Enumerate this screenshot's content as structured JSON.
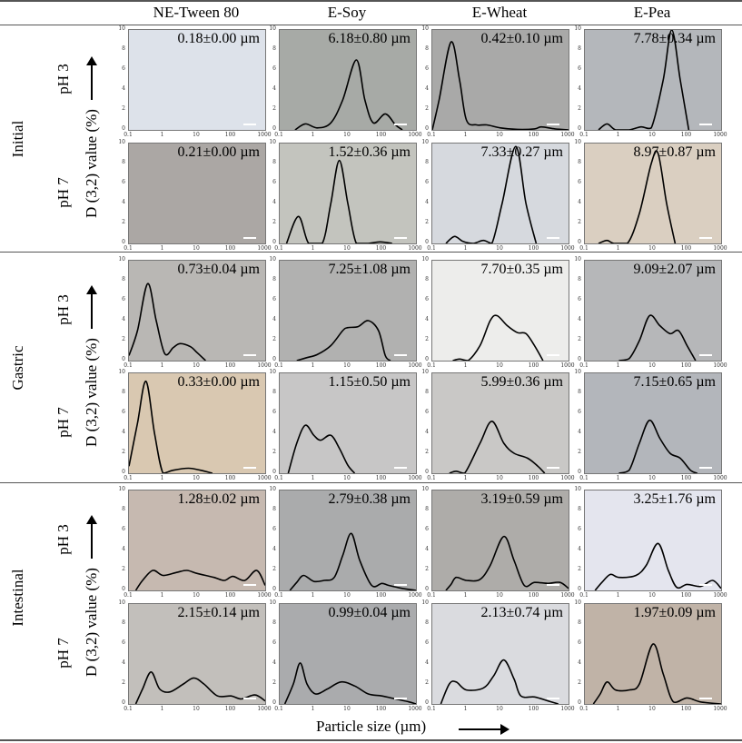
{
  "columns": [
    "NE-Tween 80",
    "E-Soy",
    "E-Wheat",
    "E-Pea"
  ],
  "stages": [
    {
      "label": "Initial",
      "rows": [
        "pH 3",
        "pH 7"
      ]
    },
    {
      "label": "Gastric",
      "rows": [
        "pH 3",
        "pH 7"
      ]
    },
    {
      "label": "Intestinal",
      "rows": [
        "pH 3",
        "pH 7"
      ]
    }
  ],
  "y_axis_label": "D (3,2) value (%)",
  "x_axis_label": "Particle size (µm)",
  "colors": {
    "line": "#000000",
    "rule": "#555555"
  },
  "chart_data": {
    "type": "line",
    "x_scale": "log",
    "xlim": [
      0.1,
      1000
    ],
    "ylim": [
      0,
      10
    ],
    "x_ticks": [
      "0.1",
      "1",
      "10",
      "100",
      "1000"
    ],
    "y_ticks": [
      "0",
      "2",
      "4",
      "6",
      "8",
      "10"
    ],
    "xlabel": "Particle size (µm)",
    "ylabel": "D (3,2) value (%)",
    "point_format": "[log10(particle size µm), value %]",
    "panels": [
      {
        "stage": "Initial",
        "ph": "pH 3",
        "sample": "NE-Tween 80",
        "label": "0.18±0.00 µm",
        "bg": "#dde2ea",
        "points": []
      },
      {
        "stage": "Initial",
        "ph": "pH 3",
        "sample": "E-Soy",
        "label": "6.18±0.80 µm",
        "bg": "#a7aaa6",
        "points": [
          [
            -0.55,
            0
          ],
          [
            -0.25,
            0.6
          ],
          [
            0.1,
            0.2
          ],
          [
            0.5,
            0.7
          ],
          [
            0.85,
            3
          ],
          [
            1.25,
            7
          ],
          [
            1.5,
            3
          ],
          [
            1.75,
            0.7
          ],
          [
            2.1,
            1.6
          ],
          [
            2.4,
            0.5
          ],
          [
            2.6,
            0
          ]
        ]
      },
      {
        "stage": "Initial",
        "ph": "pH 3",
        "sample": "E-Wheat",
        "label": "0.42±0.10 µm",
        "bg": "#a9a9a8",
        "points": [
          [
            -1,
            0
          ],
          [
            -0.8,
            3
          ],
          [
            -0.45,
            8.8
          ],
          [
            -0.2,
            5
          ],
          [
            0,
            1
          ],
          [
            0.3,
            0.5
          ],
          [
            0.6,
            0.5
          ],
          [
            1,
            0.2
          ],
          [
            1.5,
            0.05
          ],
          [
            2,
            0.1
          ],
          [
            2.2,
            0.3
          ],
          [
            2.6,
            0.1
          ],
          [
            3,
            0
          ]
        ]
      },
      {
        "stage": "Initial",
        "ph": "pH 3",
        "sample": "E-Pea",
        "label": "7.78±0.34 µm",
        "bg": "#b4b7bb",
        "points": [
          [
            -0.6,
            0
          ],
          [
            -0.35,
            0.6
          ],
          [
            -0.1,
            0
          ],
          [
            0.3,
            0
          ],
          [
            0.65,
            0.3
          ],
          [
            0.95,
            0.2
          ],
          [
            1.3,
            5
          ],
          [
            1.55,
            10
          ],
          [
            1.8,
            5
          ],
          [
            2.05,
            0
          ]
        ]
      },
      {
        "stage": "Initial",
        "ph": "pH 7",
        "sample": "NE-Tween 80",
        "label": "0.21±0.00 µm",
        "bg": "#aba7a4",
        "points": []
      },
      {
        "stage": "Initial",
        "ph": "pH 7",
        "sample": "E-Soy",
        "label": "1.52±0.36 µm",
        "bg": "#c3c4be",
        "points": [
          [
            -0.8,
            0
          ],
          [
            -0.45,
            2.7
          ],
          [
            -0.15,
            0
          ],
          [
            0.25,
            0
          ],
          [
            0.5,
            4
          ],
          [
            0.75,
            8.3
          ],
          [
            1,
            4
          ],
          [
            1.25,
            0
          ],
          [
            1.6,
            0
          ],
          [
            1.95,
            0.15
          ],
          [
            2.3,
            0
          ]
        ]
      },
      {
        "stage": "Initial",
        "ph": "pH 7",
        "sample": "E-Wheat",
        "label": "7.33±0.27 µm",
        "bg": "#d6d9de",
        "points": [
          [
            -0.6,
            0
          ],
          [
            -0.35,
            0.7
          ],
          [
            -0.1,
            0.2
          ],
          [
            0.2,
            0
          ],
          [
            0.5,
            0.3
          ],
          [
            0.75,
            0
          ],
          [
            1.05,
            4
          ],
          [
            1.45,
            9.7
          ],
          [
            1.75,
            4
          ],
          [
            2.05,
            0
          ]
        ]
      },
      {
        "stage": "Initial",
        "ph": "pH 7",
        "sample": "E-Pea",
        "label": "8.97±0.87 µm",
        "bg": "#dacfc1",
        "points": [
          [
            -0.6,
            0
          ],
          [
            -0.35,
            0.3
          ],
          [
            -0.15,
            0
          ],
          [
            0.25,
            0
          ],
          [
            0.6,
            3
          ],
          [
            0.95,
            8
          ],
          [
            1.15,
            9
          ],
          [
            1.4,
            4
          ],
          [
            1.65,
            0
          ]
        ]
      },
      {
        "stage": "Gastric",
        "ph": "pH 3",
        "sample": "NE-Tween 80",
        "label": "0.73±0.04 µm",
        "bg": "#b9b7b4",
        "points": [
          [
            -1,
            0.5
          ],
          [
            -0.75,
            3
          ],
          [
            -0.45,
            7.7
          ],
          [
            -0.2,
            4
          ],
          [
            0.05,
            0.7
          ],
          [
            0.3,
            1.3
          ],
          [
            0.5,
            1.7
          ],
          [
            0.8,
            1.4
          ],
          [
            1,
            0.8
          ],
          [
            1.25,
            0
          ]
        ]
      },
      {
        "stage": "Gastric",
        "ph": "pH 3",
        "sample": "E-Soy",
        "label": "7.25±1.08 µm",
        "bg": "#b1b1b0",
        "points": [
          [
            -0.5,
            0
          ],
          [
            -0.2,
            0.3
          ],
          [
            0.1,
            0.6
          ],
          [
            0.5,
            1.5
          ],
          [
            0.85,
            3
          ],
          [
            1,
            3.3
          ],
          [
            1.3,
            3.4
          ],
          [
            1.6,
            4
          ],
          [
            1.9,
            3
          ],
          [
            2.1,
            0.5
          ],
          [
            2.25,
            0
          ]
        ]
      },
      {
        "stage": "Gastric",
        "ph": "pH 3",
        "sample": "E-Wheat",
        "label": "7.70±0.35 µm",
        "bg": "#ededeb",
        "points": [
          [
            -0.4,
            0
          ],
          [
            -0.2,
            0.15
          ],
          [
            0.05,
            0
          ],
          [
            0.4,
            1.5
          ],
          [
            0.7,
            4
          ],
          [
            0.9,
            4.5
          ],
          [
            1.2,
            3.5
          ],
          [
            1.5,
            2.8
          ],
          [
            1.75,
            2.7
          ],
          [
            2,
            1.5
          ],
          [
            2.25,
            0
          ]
        ]
      },
      {
        "stage": "Gastric",
        "ph": "pH 3",
        "sample": "E-Pea",
        "label": "9.09±2.07 µm",
        "bg": "#b6b7b9",
        "points": [
          [
            0,
            0
          ],
          [
            0.3,
            0.2
          ],
          [
            0.6,
            2
          ],
          [
            0.9,
            4.5
          ],
          [
            1.2,
            3.5
          ],
          [
            1.5,
            2.7
          ],
          [
            1.75,
            3
          ],
          [
            2,
            1.5
          ],
          [
            2.25,
            0
          ]
        ]
      },
      {
        "stage": "Gastric",
        "ph": "pH 7",
        "sample": "NE-Tween 80",
        "label": "0.33±0.00 µm",
        "bg": "#d9c8b1",
        "points": [
          [
            -1,
            0.7
          ],
          [
            -0.75,
            5
          ],
          [
            -0.5,
            9.2
          ],
          [
            -0.25,
            4
          ],
          [
            0,
            0
          ],
          [
            0.3,
            0.3
          ],
          [
            0.75,
            0.5
          ],
          [
            1.1,
            0.3
          ],
          [
            1.45,
            0
          ]
        ]
      },
      {
        "stage": "Gastric",
        "ph": "pH 7",
        "sample": "E-Soy",
        "label": "1.15±0.50 µm",
        "bg": "#c7c6c6",
        "points": [
          [
            -0.75,
            0
          ],
          [
            -0.5,
            3
          ],
          [
            -0.25,
            4.8
          ],
          [
            0,
            3.8
          ],
          [
            0.2,
            3.3
          ],
          [
            0.5,
            3.8
          ],
          [
            0.75,
            2.5
          ],
          [
            1,
            0.8
          ],
          [
            1.2,
            0
          ]
        ]
      },
      {
        "stage": "Gastric",
        "ph": "pH 7",
        "sample": "E-Wheat",
        "label": "5.99±0.36 µm",
        "bg": "#c9c8c6",
        "points": [
          [
            -0.5,
            0
          ],
          [
            -0.3,
            0.2
          ],
          [
            -0.05,
            0
          ],
          [
            0.4,
            3
          ],
          [
            0.75,
            5.2
          ],
          [
            1.1,
            3
          ],
          [
            1.4,
            2
          ],
          [
            1.8,
            1.5
          ],
          [
            2.1,
            0.7
          ],
          [
            2.3,
            0
          ]
        ]
      },
      {
        "stage": "Gastric",
        "ph": "pH 7",
        "sample": "E-Pea",
        "label": "7.15±0.65 µm",
        "bg": "#b3b6bb",
        "points": [
          [
            0,
            0
          ],
          [
            0.3,
            0.3
          ],
          [
            0.6,
            3
          ],
          [
            0.9,
            5.3
          ],
          [
            1.2,
            3.5
          ],
          [
            1.5,
            2
          ],
          [
            1.8,
            1.5
          ],
          [
            2.1,
            0.3
          ],
          [
            2.3,
            0
          ]
        ]
      },
      {
        "stage": "Intestinal",
        "ph": "pH 3",
        "sample": "NE-Tween 80",
        "label": "1.28±0.02 µm",
        "bg": "#c6b9b0",
        "points": [
          [
            -0.8,
            0
          ],
          [
            -0.6,
            1
          ],
          [
            -0.3,
            2
          ],
          [
            0,
            1.5
          ],
          [
            0.4,
            1.8
          ],
          [
            0.7,
            2
          ],
          [
            1,
            1.7
          ],
          [
            1.5,
            1.3
          ],
          [
            1.8,
            1
          ],
          [
            2.05,
            1.4
          ],
          [
            2.4,
            1
          ],
          [
            2.75,
            2
          ],
          [
            3,
            0.5
          ]
        ]
      },
      {
        "stage": "Intestinal",
        "ph": "pH 3",
        "sample": "E-Soy",
        "label": "2.79±0.38 µm",
        "bg": "#aaabac",
        "points": [
          [
            -0.7,
            0
          ],
          [
            -0.5,
            0.8
          ],
          [
            -0.3,
            1.5
          ],
          [
            0,
            0.9
          ],
          [
            0.3,
            1
          ],
          [
            0.6,
            1.3
          ],
          [
            0.85,
            3.5
          ],
          [
            1.1,
            5.7
          ],
          [
            1.35,
            3
          ],
          [
            1.7,
            0.5
          ],
          [
            2,
            0.7
          ],
          [
            2.2,
            0.5
          ],
          [
            2.6,
            0.2
          ],
          [
            3,
            0
          ]
        ]
      },
      {
        "stage": "Intestinal",
        "ph": "pH 3",
        "sample": "E-Wheat",
        "label": "3.19±0.59 µm",
        "bg": "#aeaca9",
        "points": [
          [
            -0.6,
            0
          ],
          [
            -0.45,
            0.6
          ],
          [
            -0.3,
            1.3
          ],
          [
            0,
            1
          ],
          [
            0.4,
            1.1
          ],
          [
            0.7,
            2.5
          ],
          [
            1.1,
            5.4
          ],
          [
            1.4,
            3
          ],
          [
            1.7,
            0.5
          ],
          [
            2,
            0.8
          ],
          [
            2.4,
            0.7
          ],
          [
            2.75,
            0.8
          ],
          [
            3,
            0.2
          ]
        ]
      },
      {
        "stage": "Intestinal",
        "ph": "pH 3",
        "sample": "E-Pea",
        "label": "3.25±1.76 µm",
        "bg": "#e4e5ee",
        "points": [
          [
            -0.7,
            0
          ],
          [
            -0.5,
            0.8
          ],
          [
            -0.25,
            1.6
          ],
          [
            0,
            1.3
          ],
          [
            0.5,
            1.5
          ],
          [
            0.8,
            2.5
          ],
          [
            1.15,
            4.7
          ],
          [
            1.45,
            2
          ],
          [
            1.7,
            0.3
          ],
          [
            2,
            0.6
          ],
          [
            2.4,
            0.4
          ],
          [
            2.75,
            1
          ],
          [
            3,
            0.2
          ]
        ]
      },
      {
        "stage": "Intestinal",
        "ph": "pH 7",
        "sample": "NE-Tween 80",
        "label": "2.15±0.14 µm",
        "bg": "#c2bfbb",
        "points": [
          [
            -0.8,
            0
          ],
          [
            -0.6,
            1.5
          ],
          [
            -0.35,
            3.2
          ],
          [
            -0.1,
            1.5
          ],
          [
            0.2,
            1.2
          ],
          [
            0.6,
            2
          ],
          [
            0.9,
            2.6
          ],
          [
            1.2,
            2
          ],
          [
            1.6,
            0.8
          ],
          [
            2,
            0.8
          ],
          [
            2.3,
            0.5
          ],
          [
            2.7,
            0.9
          ],
          [
            3,
            0.3
          ]
        ]
      },
      {
        "stage": "Intestinal",
        "ph": "pH 7",
        "sample": "E-Soy",
        "label": "0.99±0.04 µm",
        "bg": "#aaabad",
        "points": [
          [
            -0.85,
            0
          ],
          [
            -0.6,
            2
          ],
          [
            -0.4,
            4.1
          ],
          [
            -0.2,
            2
          ],
          [
            0.05,
            1
          ],
          [
            0.4,
            1.5
          ],
          [
            0.8,
            2.2
          ],
          [
            1.2,
            1.8
          ],
          [
            1.6,
            1
          ],
          [
            2,
            0.8
          ],
          [
            2.4,
            0.5
          ],
          [
            2.8,
            0.2
          ],
          [
            3,
            0
          ]
        ]
      },
      {
        "stage": "Intestinal",
        "ph": "pH 7",
        "sample": "E-Wheat",
        "label": "2.13±0.74 µm",
        "bg": "#dadbdf",
        "points": [
          [
            -0.75,
            0
          ],
          [
            -0.5,
            2
          ],
          [
            -0.3,
            2.2
          ],
          [
            0,
            1.4
          ],
          [
            0.5,
            1.6
          ],
          [
            0.8,
            2.8
          ],
          [
            1.1,
            4.4
          ],
          [
            1.4,
            2.5
          ],
          [
            1.6,
            0.8
          ],
          [
            2,
            0.7
          ],
          [
            2.4,
            0.3
          ],
          [
            2.7,
            0
          ]
        ]
      },
      {
        "stage": "Intestinal",
        "ph": "pH 7",
        "sample": "E-Pea",
        "label": "1.97±0.09 µm",
        "bg": "#c0b3a7",
        "points": [
          [
            -0.75,
            0
          ],
          [
            -0.55,
            1
          ],
          [
            -0.35,
            2.2
          ],
          [
            -0.1,
            1.4
          ],
          [
            0.3,
            1.4
          ],
          [
            0.6,
            2
          ],
          [
            1,
            6
          ],
          [
            1.3,
            3
          ],
          [
            1.6,
            0.2
          ],
          [
            2,
            0.6
          ],
          [
            2.4,
            0.2
          ],
          [
            3,
            0
          ]
        ]
      }
    ]
  }
}
